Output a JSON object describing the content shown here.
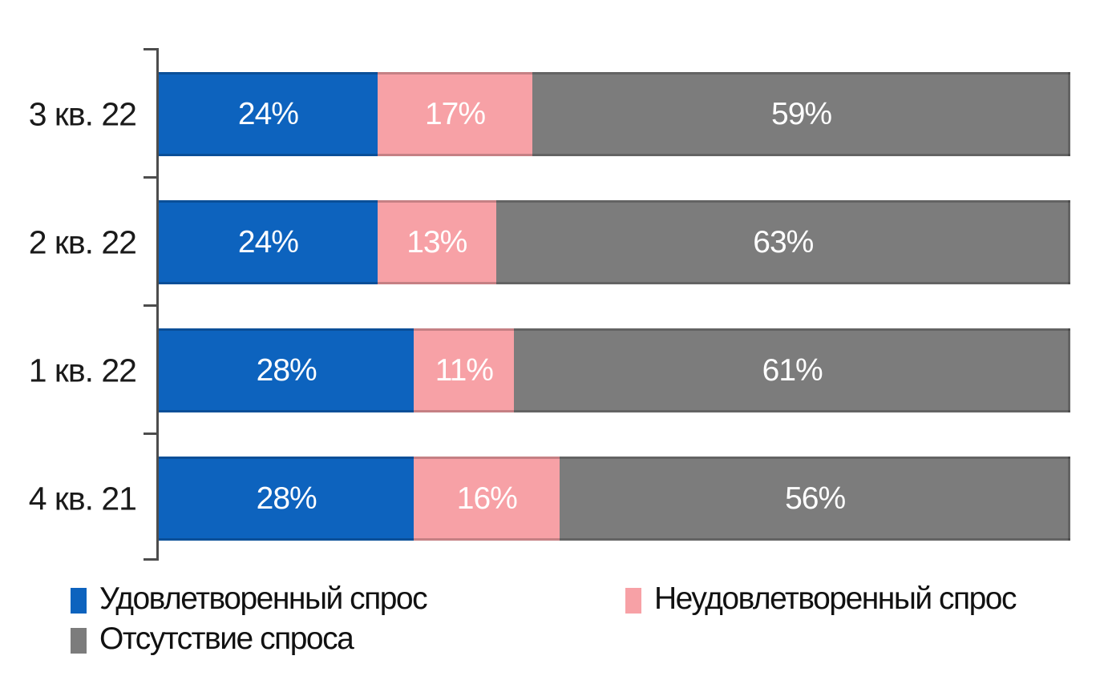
{
  "chart_data": {
    "type": "bar",
    "orientation": "horizontal",
    "stacked": true,
    "unit": "%",
    "xlim": [
      0,
      100
    ],
    "grid": false,
    "legend_position": "bottom",
    "value_label_format": "{v}%",
    "categories": [
      "3 кв. 22",
      "2 кв. 22",
      "1 кв. 22",
      "4 кв. 21"
    ],
    "series": [
      {
        "name": "Удовлетворенный спрос",
        "color": "#0d63be",
        "values": [
          24,
          24,
          28,
          28
        ]
      },
      {
        "name": "Неудовлетворенный спрос",
        "color": "#f7a1a6",
        "values": [
          17,
          13,
          11,
          16
        ]
      },
      {
        "name": "Отсутствие спроса",
        "color": "#7c7c7c",
        "values": [
          59,
          63,
          61,
          56
        ]
      }
    ]
  },
  "legend": {
    "items": [
      {
        "label": "Удовлетворенный спрос",
        "color": "#0d63be"
      },
      {
        "label": "Неудовлетворенный спрос",
        "color": "#f7a1a6"
      },
      {
        "label": "Отсутствие спроса",
        "color": "#7c7c7c"
      }
    ]
  },
  "colors": {
    "axis": "#4d4d4d",
    "value_label": "#ffffff",
    "category_label": "#1a1a1a",
    "background": "#ffffff"
  }
}
